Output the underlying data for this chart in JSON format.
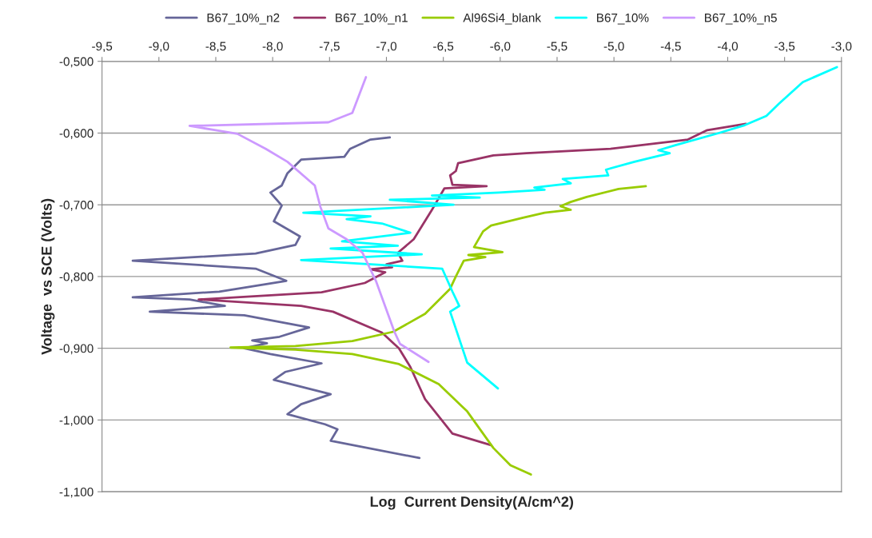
{
  "chart_data": {
    "type": "line",
    "xlabel": "Log  Current Density(A/cm^2)",
    "ylabel": "Voltage  vs SCE (Volts)",
    "xlim": [
      -9.5,
      -3.0
    ],
    "ylim": [
      -1.1,
      -0.5
    ],
    "xticks": [
      {
        "value": -9.5,
        "label": "-9,5"
      },
      {
        "value": -9.0,
        "label": "-9,0"
      },
      {
        "value": -8.5,
        "label": "-8,5"
      },
      {
        "value": -8.0,
        "label": "-8,0"
      },
      {
        "value": -7.5,
        "label": "-7,5"
      },
      {
        "value": -7.0,
        "label": "-7,0"
      },
      {
        "value": -6.5,
        "label": "-6,5"
      },
      {
        "value": -6.0,
        "label": "-6,0"
      },
      {
        "value": -5.5,
        "label": "-5,5"
      },
      {
        "value": -5.0,
        "label": "-5,0"
      },
      {
        "value": -4.5,
        "label": "-4,5"
      },
      {
        "value": -4.0,
        "label": "-4,0"
      },
      {
        "value": -3.5,
        "label": "-3,5"
      },
      {
        "value": -3.0,
        "label": "-3,0"
      }
    ],
    "yticks": [
      {
        "value": -1.1,
        "label": "-1,100"
      },
      {
        "value": -1.0,
        "label": "-1,000"
      },
      {
        "value": -0.9,
        "label": "-0,900"
      },
      {
        "value": -0.8,
        "label": "-0,800"
      },
      {
        "value": -0.7,
        "label": "-0,700"
      },
      {
        "value": -0.6,
        "label": "-0,600"
      },
      {
        "value": -0.5,
        "label": "-0,500"
      }
    ],
    "grid": "y",
    "legend": "top",
    "marker": "none",
    "line_style": "solid",
    "series": [
      {
        "name": "B67_10%_n2",
        "color": "#666699",
        "x": [
          -6.97,
          -7.14,
          -7.32,
          -7.37,
          -7.75,
          -7.87,
          -7.92,
          -8.02,
          -7.92,
          -7.99,
          -7.76,
          -7.8,
          -8.15,
          -9.23,
          -8.15,
          -7.88,
          -8.47,
          -9.23,
          -8.73,
          -8.42,
          -9.08,
          -8.25,
          -7.68,
          -7.94,
          -8.18,
          -8.05,
          -8.25,
          -8.02,
          -7.57,
          -7.89,
          -7.99,
          -7.49,
          -7.75,
          -7.87,
          -7.54,
          -7.43,
          -7.49,
          -6.71
        ],
        "values": [
          -0.606,
          -0.609,
          -0.622,
          -0.633,
          -0.637,
          -0.656,
          -0.673,
          -0.683,
          -0.701,
          -0.723,
          -0.744,
          -0.756,
          -0.768,
          -0.778,
          -0.789,
          -0.806,
          -0.821,
          -0.829,
          -0.832,
          -0.841,
          -0.849,
          -0.854,
          -0.871,
          -0.884,
          -0.889,
          -0.893,
          -0.9,
          -0.908,
          -0.921,
          -0.933,
          -0.944,
          -0.964,
          -0.978,
          -0.992,
          -1.006,
          -1.013,
          -1.029,
          -1.053
        ]
      },
      {
        "name": "B67_10%_n1",
        "color": "#993366",
        "x": [
          -3.84,
          -4.18,
          -4.35,
          -5.03,
          -5.77,
          -6.06,
          -6.37,
          -6.39,
          -6.44,
          -6.42,
          -6.12,
          -6.49,
          -6.6,
          -6.76,
          -6.9,
          -6.86,
          -7.0,
          -6.95,
          -7.14,
          -7.01,
          -7.19,
          -7.57,
          -8.65,
          -7.75,
          -7.47,
          -7.04,
          -6.89,
          -6.79,
          -6.66,
          -6.42,
          -6.08
        ],
        "values": [
          -0.587,
          -0.596,
          -0.609,
          -0.622,
          -0.628,
          -0.631,
          -0.642,
          -0.653,
          -0.659,
          -0.672,
          -0.674,
          -0.677,
          -0.707,
          -0.748,
          -0.767,
          -0.778,
          -0.783,
          -0.787,
          -0.79,
          -0.794,
          -0.809,
          -0.822,
          -0.832,
          -0.841,
          -0.849,
          -0.878,
          -0.9,
          -0.926,
          -0.971,
          -1.019,
          -1.035
        ]
      },
      {
        "name": "Al96Si4_blank",
        "color": "#99cc00",
        "x": [
          -4.72,
          -4.96,
          -5.24,
          -5.38,
          -5.47,
          -5.38,
          -5.61,
          -5.8,
          -6.08,
          -6.15,
          -6.23,
          -5.98,
          -6.28,
          -6.13,
          -6.32,
          -6.39,
          -6.44,
          -6.66,
          -6.94,
          -7.3,
          -7.8,
          -8.37,
          -7.8,
          -7.3,
          -6.89,
          -6.54,
          -6.29,
          -6.06,
          -5.91,
          -5.73
        ],
        "values": [
          -0.674,
          -0.678,
          -0.689,
          -0.696,
          -0.702,
          -0.707,
          -0.711,
          -0.718,
          -0.729,
          -0.737,
          -0.759,
          -0.766,
          -0.77,
          -0.773,
          -0.778,
          -0.8,
          -0.817,
          -0.852,
          -0.877,
          -0.89,
          -0.897,
          -0.899,
          -0.902,
          -0.908,
          -0.922,
          -0.95,
          -0.988,
          -1.039,
          -1.063,
          -1.076
        ]
      },
      {
        "name": "B67_10%",
        "color": "#00ffff",
        "x": [
          -3.04,
          -3.34,
          -3.55,
          -3.66,
          -3.85,
          -4.08,
          -4.46,
          -4.61,
          -4.51,
          -4.82,
          -5.07,
          -5.05,
          -5.45,
          -5.38,
          -5.7,
          -5.61,
          -6.01,
          -6.6,
          -6.18,
          -6.97,
          -6.41,
          -7.73,
          -7.14,
          -7.35,
          -7.04,
          -6.79,
          -7.39,
          -6.9,
          -7.49,
          -6.69,
          -7.75,
          -6.51,
          -6.42,
          -6.36,
          -6.44,
          -6.29,
          -6.02
        ],
        "values": [
          -0.508,
          -0.529,
          -0.559,
          -0.576,
          -0.589,
          -0.6,
          -0.617,
          -0.624,
          -0.628,
          -0.64,
          -0.651,
          -0.659,
          -0.664,
          -0.67,
          -0.676,
          -0.679,
          -0.683,
          -0.687,
          -0.69,
          -0.693,
          -0.7,
          -0.711,
          -0.716,
          -0.72,
          -0.726,
          -0.739,
          -0.751,
          -0.757,
          -0.761,
          -0.769,
          -0.777,
          -0.789,
          -0.821,
          -0.841,
          -0.849,
          -0.92,
          -0.956
        ]
      },
      {
        "name": "B67_10%_n5",
        "color": "#cc99ff",
        "x": [
          -7.18,
          -7.3,
          -7.51,
          -8.73,
          -8.5,
          -8.31,
          -8.06,
          -7.87,
          -7.63,
          -7.58,
          -7.51,
          -7.35,
          -7.21,
          -7.09,
          -6.93,
          -6.88,
          -6.63
        ],
        "values": [
          -0.522,
          -0.572,
          -0.585,
          -0.59,
          -0.596,
          -0.601,
          -0.622,
          -0.64,
          -0.673,
          -0.703,
          -0.733,
          -0.748,
          -0.767,
          -0.807,
          -0.877,
          -0.894,
          -0.919
        ]
      }
    ]
  }
}
